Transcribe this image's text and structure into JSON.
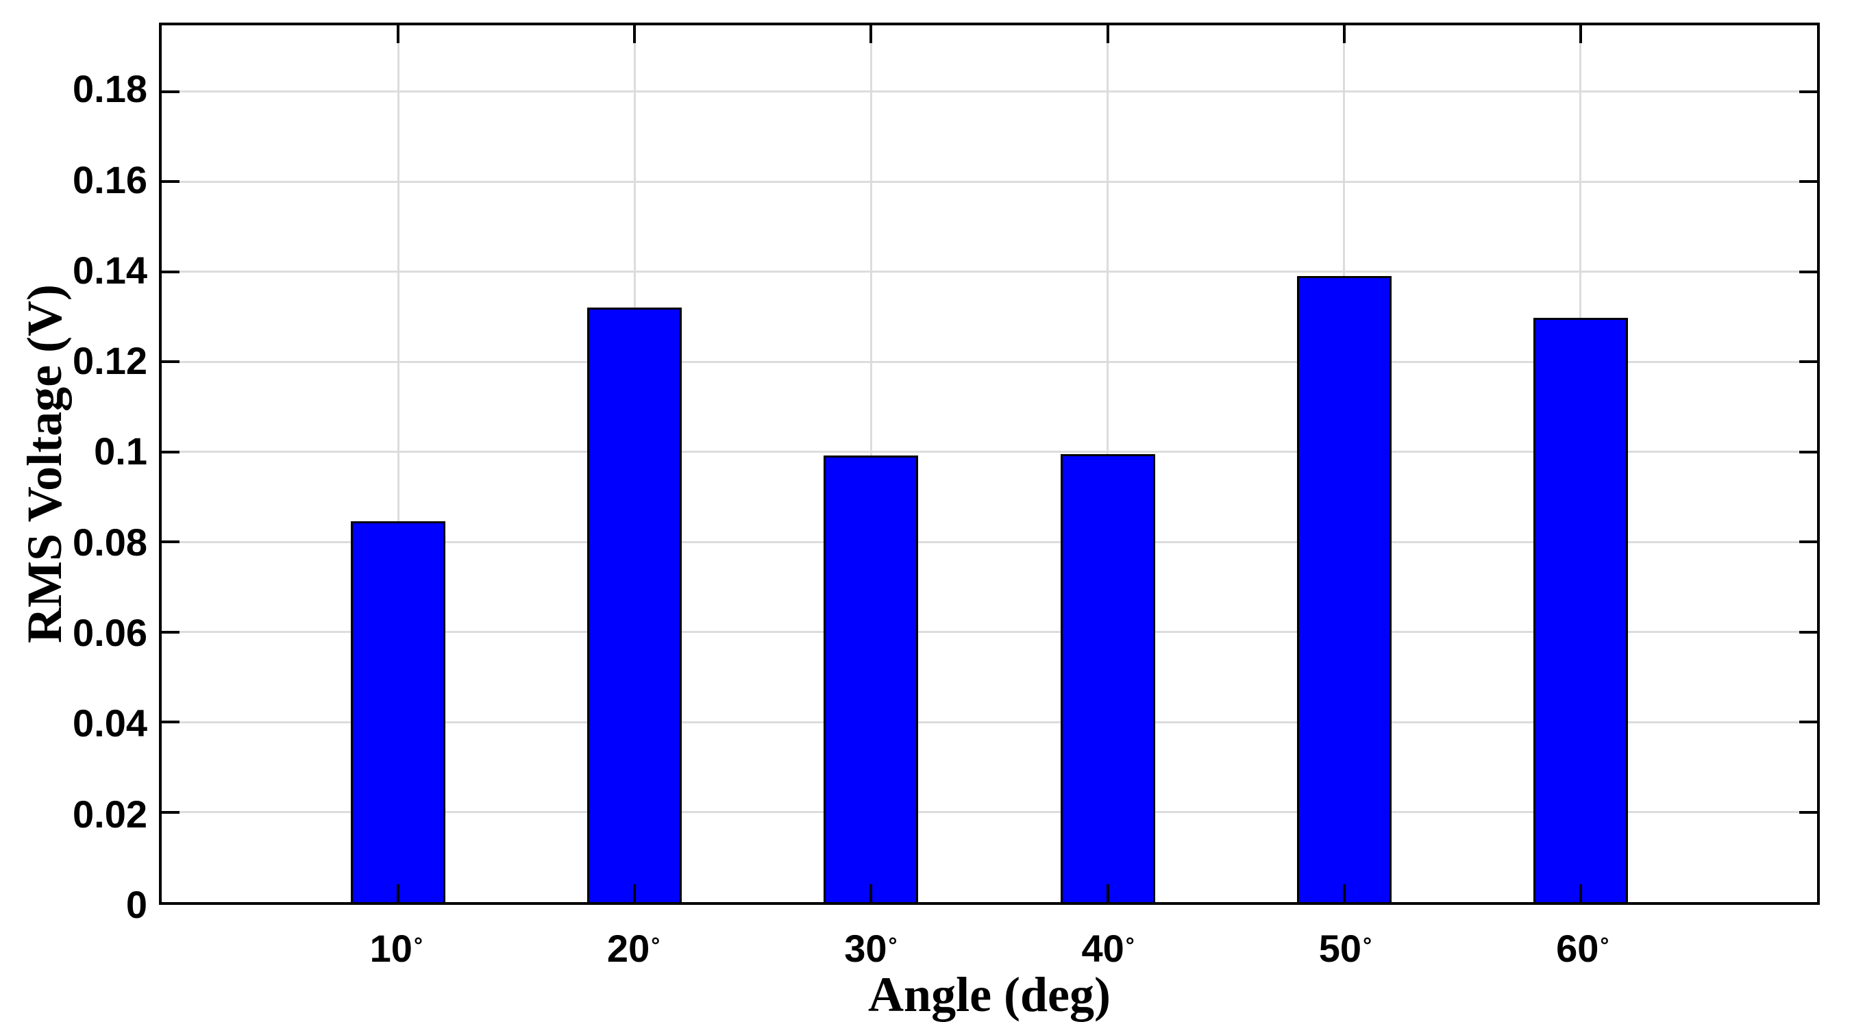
{
  "chart_data": {
    "type": "bar",
    "title": "",
    "xlabel": "Angle (deg)",
    "ylabel": "RMS Voltage (V)",
    "x_tick_numbers": [
      "10",
      "20",
      "30",
      "40",
      "50",
      "60"
    ],
    "degree_symbol": "°",
    "categories": [
      "10°",
      "20°",
      "30°",
      "40°",
      "50°",
      "60°"
    ],
    "values": [
      0.0846,
      0.132,
      0.0992,
      0.0995,
      0.139,
      0.1297
    ],
    "series_name": "RMS Voltage",
    "y_ticks": [
      0,
      0.02,
      0.04,
      0.06,
      0.08,
      0.1,
      0.12,
      0.14,
      0.16,
      0.18
    ],
    "y_tick_labels": [
      "0",
      "0.02",
      "0.04",
      "0.06",
      "0.08",
      "0.1",
      "0.12",
      "0.14",
      "0.16",
      "0.18"
    ],
    "ylim": [
      0,
      0.1947
    ],
    "x_units": 7,
    "bar_width_units": 0.4,
    "grid": "on",
    "legend": "none",
    "colors": {
      "bar_fill": "#0000FF",
      "bar_edge": "#000000",
      "grid": "#DCDCDC",
      "axis": "#000000",
      "tick": "#000000",
      "background": "#FFFFFF",
      "text": "#000000"
    }
  }
}
